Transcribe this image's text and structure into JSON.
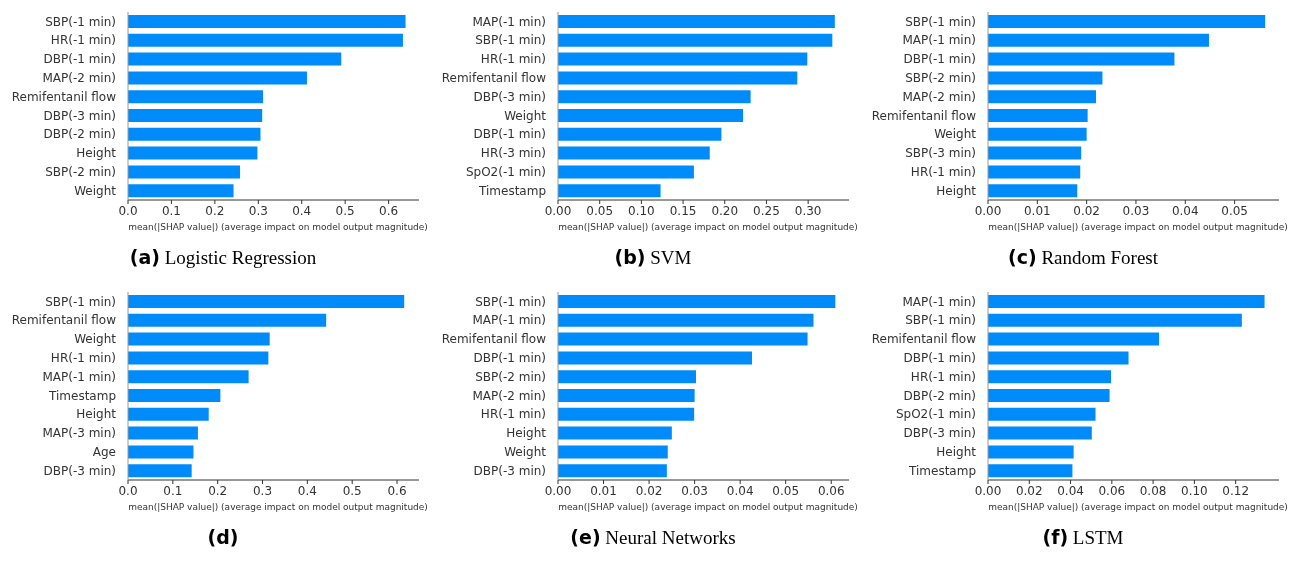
{
  "chart_data": [
    {
      "type": "bar",
      "orientation": "horizontal",
      "title": "(a) Logistic Regression",
      "xlabel": "mean(|SHAP value|) (average impact on model output magnitude)",
      "color": "#008bfb",
      "categories": [
        "SBP(-1 min)",
        "HR(-1 min)",
        "DBP(-1 min)",
        "MAP(-2 min)",
        "Remifentanil flow",
        "DBP(-3 min)",
        "DBP(-2 min)",
        "Height",
        "SBP(-2 min)",
        "Weight"
      ],
      "values": [
        0.639,
        0.633,
        0.491,
        0.412,
        0.311,
        0.309,
        0.305,
        0.298,
        0.258,
        0.243
      ],
      "xlim": [
        0,
        0.67
      ],
      "xticks": [
        {
          "value": 0,
          "label": "0.0"
        },
        0.1,
        0.2,
        0.3,
        0.4,
        0.5,
        0.6
      ]
    },
    {
      "type": "bar",
      "orientation": "horizontal",
      "title": "(b) SVM",
      "xlabel": "mean(|SHAP value|) (average impact on model output magnitude)",
      "color": "#008bfb",
      "categories": [
        "MAP(-1 min)",
        "SBP(-1 min)",
        "HR(-1 min)",
        "Remifentanil flow",
        "DBP(-3 min)",
        "Weight",
        "DBP(-1 min)",
        "HR(-3 min)",
        "SpO2(-1 min)",
        "Timestamp"
      ],
      "values": [
        0.332,
        0.329,
        0.299,
        0.287,
        0.231,
        0.222,
        0.196,
        0.182,
        0.163,
        0.123
      ],
      "xlim": [
        0,
        0.349
      ],
      "xticks": [
        {
          "value": 0,
          "label": "0.00"
        },
        0.05,
        {
          "value": 0.1,
          "label": "0.10"
        },
        0.15,
        {
          "value": 0.2,
          "label": "0.20"
        },
        0.25,
        {
          "value": 0.3,
          "label": "0.30"
        }
      ]
    },
    {
      "type": "bar",
      "orientation": "horizontal",
      "title": "(c) Random Forest",
      "xlabel": "mean(|SHAP value|) (average impact on model output magnitude)",
      "color": "#008bfb",
      "categories": [
        "SBP(-1 min)",
        "MAP(-1 min)",
        "DBP(-1 min)",
        "SBP(-2 min)",
        "MAP(-2 min)",
        "Remifentanil flow",
        "Weight",
        "SBP(-3 min)",
        "HR(-1 min)",
        "Height"
      ],
      "values": [
        0.0562,
        0.0448,
        0.0378,
        0.0232,
        0.0219,
        0.0202,
        0.02,
        0.0189,
        0.0187,
        0.0181
      ],
      "xlim": [
        0,
        0.059
      ],
      "xticks": [
        {
          "value": 0,
          "label": "0.00"
        },
        0.01,
        0.02,
        0.03,
        0.04,
        0.05
      ]
    },
    {
      "type": "bar",
      "orientation": "horizontal",
      "title": "(d)",
      "xlabel": "mean(|SHAP value|) (average impact on model output magnitude)",
      "color": "#008bfb",
      "categories": [
        "SBP(-1 min)",
        "Remifentanil flow",
        "Weight",
        "HR(-1 min)",
        "MAP(-1 min)",
        "Timestamp",
        "Height",
        "MAP(-3 min)",
        "Age",
        "DBP(-3 min)"
      ],
      "values": [
        0.616,
        0.442,
        0.316,
        0.313,
        0.269,
        0.206,
        0.18,
        0.156,
        0.146,
        0.142
      ],
      "xlim": [
        0,
        0.649
      ],
      "xticks": [
        {
          "value": 0,
          "label": "0.0"
        },
        0.1,
        0.2,
        0.3,
        0.4,
        0.5,
        0.6
      ]
    },
    {
      "type": "bar",
      "orientation": "horizontal",
      "title": "(e) Neural Networks",
      "xlabel": "mean(|SHAP value|) (average impact on model output magnitude)",
      "color": "#008bfb",
      "categories": [
        "SBP(-1 min)",
        "MAP(-1 min)",
        "Remifentanil flow",
        "DBP(-1 min)",
        "SBP(-2 min)",
        "MAP(-2 min)",
        "HR(-1 min)",
        "Height",
        "Weight",
        "DBP(-3 min)"
      ],
      "values": [
        0.0609,
        0.0561,
        0.0548,
        0.0426,
        0.0303,
        0.03,
        0.0299,
        0.025,
        0.0241,
        0.0239
      ],
      "xlim": [
        0,
        0.0639
      ],
      "xticks": [
        {
          "value": 0,
          "label": "0.00"
        },
        0.01,
        0.02,
        0.03,
        0.04,
        0.05,
        0.06
      ]
    },
    {
      "type": "bar",
      "orientation": "horizontal",
      "title": "(f) LSTM",
      "xlabel": "mean(|SHAP value|) (average impact on model output magnitude)",
      "color": "#008bfb",
      "categories": [
        "MAP(-1 min)",
        "SBP(-1 min)",
        "Remifentanil flow",
        "DBP(-1 min)",
        "HR(-1 min)",
        "DBP(-2 min)",
        "SpO2(-1 min)",
        "DBP(-3 min)",
        "Height",
        "Timestamp"
      ],
      "values": [
        0.134,
        0.123,
        0.0829,
        0.0681,
        0.0596,
        0.0589,
        0.0521,
        0.0503,
        0.0415,
        0.0409
      ],
      "xlim": [
        0,
        0.141
      ],
      "xticks": [
        {
          "value": 0,
          "label": "0.00"
        },
        0.02,
        0.04,
        0.06,
        0.08,
        {
          "value": 0.1,
          "label": "0.10"
        },
        0.12
      ]
    }
  ]
}
